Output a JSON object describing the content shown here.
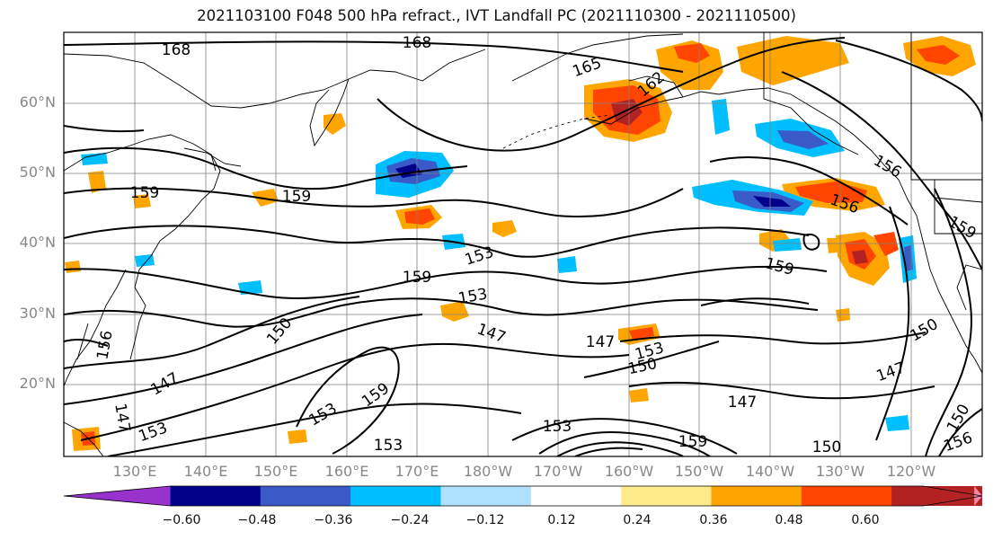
{
  "title": "2021103100 F048 500 hPa refract., IVT Landfall PC (2021110300 - 2021110500)",
  "lat_labels": [
    "60°N",
    "50°N",
    "40°N",
    "30°N",
    "20°N"
  ],
  "lon_labels": [
    "130°E",
    "140°E",
    "150°E",
    "160°E",
    "170°E",
    "180°W",
    "170°W",
    "160°W",
    "150°W",
    "140°W",
    "130°W",
    "120°W"
  ],
  "contour_labels": [
    "168",
    "168",
    "165",
    "162",
    "159",
    "159",
    "159",
    "156",
    "156",
    "159",
    "153",
    "153",
    "153",
    "150",
    "150",
    "147",
    "147",
    "147",
    "147",
    "147",
    "147",
    "150",
    "153",
    "153",
    "153",
    "159",
    "159",
    "153",
    "150",
    "156",
    "150",
    "156",
    "159"
  ],
  "colorbar": {
    "colors": [
      "#9932cc",
      "#00008b",
      "#3a5bc7",
      "#00bfff",
      "#b0e0ff",
      "#ffffff",
      "#ffeb8a",
      "#ffa500",
      "#ff4500",
      "#b22222",
      "#ff88aa"
    ],
    "tick_labels": [
      "−0.60",
      "−0.48",
      "−0.36",
      "−0.24",
      "−0.12",
      "0.12",
      "0.24",
      "0.36",
      "0.48",
      "0.60"
    ]
  },
  "colors": {
    "coast": "#000000",
    "contour": "#000000",
    "grid": "#808080",
    "axis_label": "#888888"
  }
}
